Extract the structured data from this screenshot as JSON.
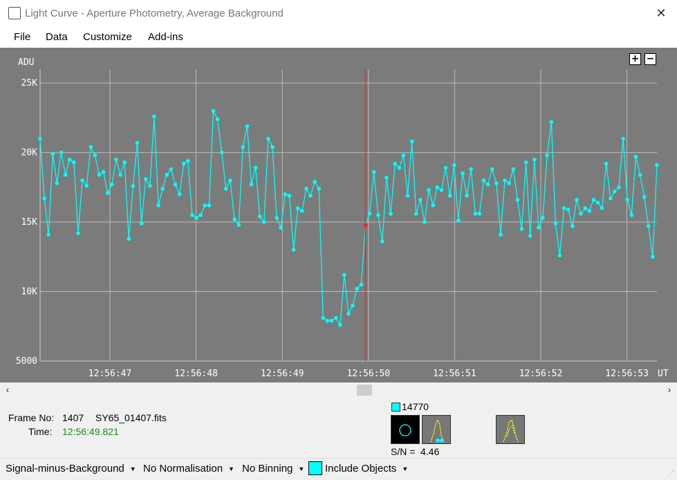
{
  "window": {
    "title": "Light Curve - Aperture Photometry, Average Background"
  },
  "menu": [
    "File",
    "Data",
    "Customize",
    "Add-ins"
  ],
  "zoom": {
    "plus": "+",
    "minus": "−"
  },
  "chart_data": {
    "type": "line",
    "ylabel": "ADU",
    "xlabel": "UT",
    "ylim": [
      5000,
      26000
    ],
    "y_ticks": [
      {
        "value": 5000,
        "label": "5000"
      },
      {
        "value": 10000,
        "label": "10K"
      },
      {
        "value": 15000,
        "label": "15K"
      },
      {
        "value": 20000,
        "label": "20K"
      },
      {
        "value": 25000,
        "label": "25K"
      }
    ],
    "x_ticks": [
      "12:56:47",
      "12:56:48",
      "12:56:49",
      "12:56:50",
      "12:56:51",
      "12:56:52",
      "12:56:53"
    ],
    "grid": true,
    "series": [
      {
        "color": "#00ffff",
        "values": [
          21000,
          16700,
          14100,
          19900,
          17800,
          20000,
          18400,
          19500,
          19300,
          14200,
          18000,
          17600,
          20400,
          19800,
          18400,
          18600,
          17100,
          17700,
          19500,
          18400,
          19300,
          13800,
          17600,
          20700,
          14900,
          18100,
          17600,
          22600,
          16200,
          17400,
          18400,
          18800,
          17700,
          17000,
          19200,
          19400,
          15500,
          15300,
          15500,
          16200,
          16200,
          23000,
          22400,
          20000,
          17400,
          18000,
          15200,
          14800,
          20400,
          21900,
          17700,
          18900,
          15400,
          15000,
          21000,
          20400,
          15300,
          14600,
          17000,
          16900,
          13000,
          16000,
          15800,
          17400,
          16900,
          17900,
          17400,
          8100,
          7900,
          7900,
          8100,
          7600,
          11200,
          8400,
          9000,
          10200,
          10500,
          14770,
          15600,
          18600,
          15500,
          13600,
          18200,
          15600,
          19200,
          18900,
          19800,
          16900,
          20800,
          15600,
          16600,
          15000,
          17300,
          16200,
          17500,
          17300,
          18900,
          16900,
          19100,
          15100,
          18500,
          16900,
          18800,
          15600,
          15600,
          18000,
          17700,
          18800,
          17800,
          14100,
          18000,
          17800,
          18800,
          16600,
          14500,
          19300,
          14000,
          19500,
          14600,
          15300,
          19800,
          22200,
          14900,
          12600,
          16000,
          15900,
          14700,
          16600,
          15600,
          16000,
          15800,
          16600,
          16400,
          16000,
          19200,
          16700,
          17200,
          17500,
          21000,
          16600,
          15500,
          19700,
          18400,
          16800,
          14700,
          12500,
          19100
        ]
      }
    ],
    "cursor": {
      "time": "12:56:49.821",
      "value": 14770
    }
  },
  "info": {
    "frame_label": "Frame No:",
    "frame_no": "1407",
    "file_name": "SY65_01407.fits",
    "time_label": "Time:",
    "time_value": "12:56:49.821",
    "object_value": "14770",
    "sn_label": "S/N =",
    "sn_value": "4.46",
    "object_color": "#00ffff"
  },
  "toolbar": {
    "signal_mode": "Signal-minus-Background",
    "normalisation": "No Normalisation",
    "binning": "No Binning",
    "include_objects": "Include Objects"
  }
}
